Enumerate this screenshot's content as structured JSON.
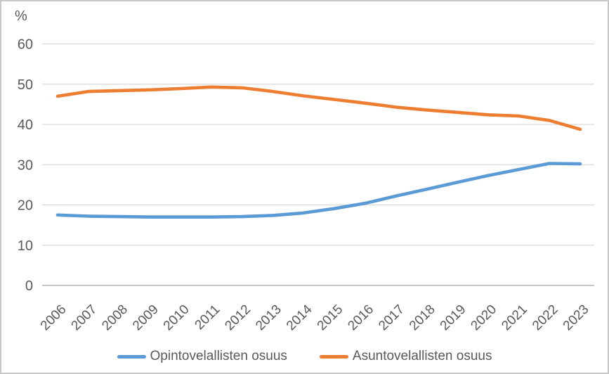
{
  "chart_data": {
    "type": "line",
    "title": "",
    "ylabel": "%",
    "xlabel": "",
    "x": [
      "2006",
      "2007",
      "2008",
      "2009",
      "2010",
      "2011",
      "2012",
      "2013",
      "2014",
      "2015",
      "2016",
      "2017",
      "2018",
      "2019",
      "2020",
      "2021",
      "2022",
      "2023"
    ],
    "ylim": [
      0,
      60
    ],
    "yticks": [
      0,
      10,
      20,
      30,
      40,
      50,
      60
    ],
    "grid": "horizontal",
    "legend_position": "bottom",
    "series": [
      {
        "name": "Opintovelallisten osuus",
        "color": "#5B9BD5",
        "values": [
          17.5,
          17.2,
          17.1,
          17.0,
          17.0,
          17.0,
          17.1,
          17.4,
          18.0,
          19.1,
          20.4,
          22.2,
          23.9,
          25.6,
          27.3,
          28.8,
          30.3,
          30.2
        ]
      },
      {
        "name": "Asuntovelallisten osuus",
        "color": "#ED7D31",
        "values": [
          47.0,
          48.2,
          48.4,
          48.6,
          48.9,
          49.3,
          49.1,
          48.2,
          47.1,
          46.2,
          45.3,
          44.3,
          43.6,
          43.0,
          42.4,
          42.1,
          41.0,
          38.8
        ]
      }
    ],
    "colors": {
      "grid": "#D9D9D9",
      "axis_line": "#BFBFBF",
      "text": "#595959",
      "frame_border": "#C9C9C9",
      "background": "#FFFFFF"
    }
  }
}
